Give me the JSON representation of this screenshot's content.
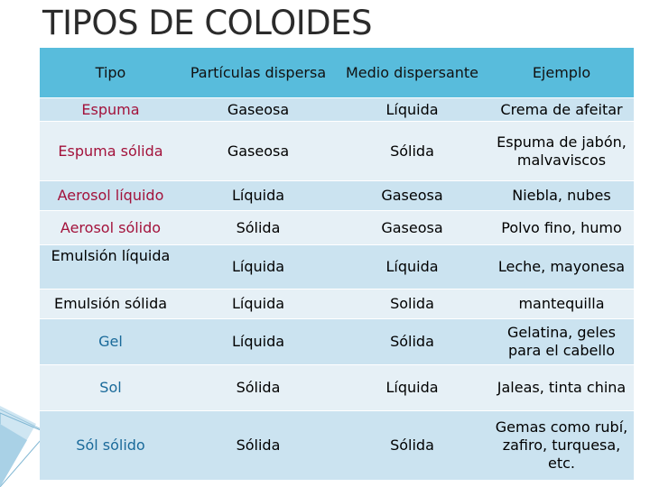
{
  "title": "TIPOS DE COLOIDES",
  "headers": [
    "Tipo",
    "Partículas dispersa",
    "Medio dispersante",
    "Ejemplo"
  ],
  "rows": [
    {
      "tipo": "Espuma",
      "particulas": "Gaseosa",
      "medio": "Líquida",
      "ejemplo": "Crema de afeitar"
    },
    {
      "tipo": "Espuma sólida",
      "particulas": "Gaseosa",
      "medio": "Sólida",
      "ejemplo": "Espuma de jabón, malvaviscos"
    },
    {
      "tipo": "Aerosol líquido",
      "particulas": "Líquida",
      "medio": "Gaseosa",
      "ejemplo": "Niebla, nubes"
    },
    {
      "tipo": "Aerosol sólido",
      "particulas": "Sólida",
      "medio": "Gaseosa",
      "ejemplo": "Polvo fino, humo"
    },
    {
      "tipo": "Emulsión líquida",
      "particulas": "Líquida",
      "medio": "Líquida",
      "ejemplo": "Leche, mayonesa"
    },
    {
      "tipo": "Emulsión sólida",
      "particulas": "Líquida",
      "medio": "Solida",
      "ejemplo": "mantequilla"
    },
    {
      "tipo": "Gel",
      "particulas": "Líquida",
      "medio": "Sólida",
      "ejemplo": "Gelatina, geles para el cabello"
    },
    {
      "tipo": "Sol",
      "particulas": "Sólida",
      "medio": "Líquida",
      "ejemplo": "Jaleas, tinta china"
    },
    {
      "tipo": "Sól sólido",
      "particulas": "Sólida",
      "medio": "Sólida",
      "ejemplo": "Gemas como rubí, zafiro, turquesa, etc."
    }
  ],
  "colors": {
    "header": "#58bcdc",
    "row_dark": "#cbe3f0",
    "row_light": "#e6f0f6",
    "type_red": "#a3123b",
    "type_blue": "#1a6a9a",
    "title": "#2b2b2b"
  }
}
